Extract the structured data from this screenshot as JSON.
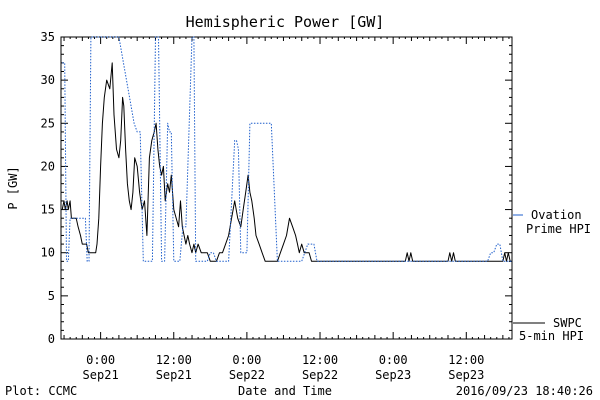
{
  "chart_data": {
    "type": "line",
    "title": "Hemispheric Power [GW]",
    "xlabel": "Date and Time",
    "ylabel": "P [GW]",
    "ylim": [
      0,
      35
    ],
    "xlim_hours": [
      -6.5,
      67.5
    ],
    "yticks": [
      0,
      5,
      10,
      15,
      20,
      25,
      30,
      35
    ],
    "xticks": [
      {
        "hour": 0,
        "time": "0:00",
        "date": "Sep21"
      },
      {
        "hour": 12,
        "time": "12:00",
        "date": "Sep21"
      },
      {
        "hour": 24,
        "time": "0:00",
        "date": "Sep22"
      },
      {
        "hour": 36,
        "time": "12:00",
        "date": "Sep22"
      },
      {
        "hour": 48,
        "time": "0:00",
        "date": "Sep23"
      },
      {
        "hour": 60,
        "time": "12:00",
        "date": "Sep23"
      }
    ],
    "series": [
      {
        "name": "SWPC 5-min HPI",
        "color": "#000000",
        "style": "solid",
        "legend_lines": [
          "SWPC",
          "5-min HPI"
        ],
        "x": [
          -6.3,
          -6.0,
          -5.8,
          -5.5,
          -5.3,
          -5.0,
          -4.8,
          -4.5,
          -4.3,
          -4.0,
          -3.7,
          -3.3,
          -3.0,
          -2.7,
          -2.3,
          -2.0,
          -1.5,
          -1.0,
          -0.8,
          -0.6,
          -0.3,
          0.0,
          0.3,
          0.6,
          1.0,
          1.5,
          1.9,
          2.2,
          2.6,
          3.0,
          3.3,
          3.6,
          3.8,
          4.1,
          4.4,
          4.7,
          5.0,
          5.3,
          5.6,
          6.0,
          6.4,
          6.8,
          7.2,
          7.6,
          8.0,
          8.4,
          8.8,
          9.1,
          9.4,
          9.7,
          10.0,
          10.3,
          10.6,
          11.0,
          11.3,
          11.6,
          12.0,
          12.4,
          12.8,
          13.1,
          13.4,
          13.7,
          14.0,
          14.3,
          14.6,
          15.0,
          15.3,
          15.6,
          16.0,
          16.5,
          17.0,
          17.5,
          18.0,
          18.5,
          19.0,
          19.5,
          20.0,
          20.5,
          21.0,
          21.5,
          22.0,
          22.5,
          23.0,
          23.4,
          23.8,
          24.2,
          24.5,
          24.8,
          25.2,
          25.5,
          26.0,
          26.5,
          27.0,
          27.5,
          28.0,
          28.5,
          29.0,
          29.5,
          30.0,
          30.5,
          31.0,
          31.5,
          32.0,
          32.3,
          32.6,
          33.0,
          33.4,
          33.8,
          34.2,
          34.6,
          35.0,
          35.5,
          36.0,
          36.5,
          37.0,
          38.0,
          42.0,
          46.0,
          48.0,
          50.0,
          50.3,
          50.6,
          50.9,
          51.2,
          52.0,
          55.0,
          56.0,
          57.0,
          57.3,
          57.6,
          57.9,
          58.2,
          59.0,
          62.0,
          64.0,
          66.0,
          66.3,
          66.6,
          66.9,
          67.2,
          67.4
        ],
        "y": [
          15,
          16,
          15,
          16,
          15,
          16,
          14,
          14,
          14,
          14,
          13,
          12,
          11,
          11,
          11,
          10,
          10,
          10,
          10,
          11,
          14,
          20,
          25,
          28,
          30,
          29,
          32,
          26,
          22,
          21,
          23,
          28,
          27,
          22,
          18,
          16,
          15,
          17,
          21,
          20,
          17,
          15,
          16,
          12,
          21,
          23,
          24,
          25,
          22,
          20,
          19,
          20,
          16,
          18,
          17,
          19,
          15,
          14,
          13,
          16,
          13,
          12,
          11,
          12,
          11,
          10,
          11,
          10,
          11,
          10,
          10,
          10,
          9,
          9,
          9,
          10,
          10,
          11,
          12,
          14,
          16,
          14,
          13,
          15,
          17,
          19,
          17,
          16,
          14,
          12,
          11,
          10,
          9,
          9,
          9,
          9,
          9,
          10,
          11,
          12,
          14,
          13,
          12,
          11,
          10,
          11,
          10,
          10,
          10,
          9,
          9,
          9,
          9,
          9,
          9,
          9,
          9,
          9,
          9,
          9,
          10,
          9,
          10,
          9,
          9,
          9,
          9,
          9,
          10,
          9,
          10,
          9,
          9,
          9,
          9,
          9,
          10,
          9,
          10,
          9,
          9
        ]
      },
      {
        "name": "Ovation Prime HPI",
        "color": "#1f5fcc",
        "style": "dotted",
        "legend_lines": [
          "Ovation",
          "Prime HPI"
        ],
        "x": [
          -6.3,
          -5.9,
          -5.6,
          -5.3,
          -5.0,
          -4.6,
          -2.5,
          -2.2,
          -1.9,
          -1.6,
          -1.2,
          1.0,
          1.5,
          2.0,
          3.0,
          5.5,
          6.0,
          6.5,
          7.0,
          8.0,
          8.5,
          9.0,
          9.5,
          10.0,
          10.5,
          11.0,
          11.3,
          11.6,
          12.0,
          12.5,
          13.0,
          13.5,
          14.0,
          15.0,
          15.3,
          15.6,
          16.0,
          16.5,
          17.0,
          17.5,
          18.0,
          18.5,
          19.0,
          19.5,
          20.0,
          21.0,
          22.0,
          22.3,
          22.6,
          23.0,
          23.5,
          24.0,
          24.5,
          25.0,
          25.3,
          26.0,
          27.0,
          28.0,
          29.0,
          30.0,
          31.0,
          32.0,
          33.0,
          34.0,
          35.0,
          35.5,
          36.0,
          36.5,
          37.0,
          38.0,
          42.0,
          46.0,
          50.0,
          54.0,
          58.0,
          62.0,
          63.5,
          64.0,
          64.5,
          65.0,
          65.5,
          66.0,
          67.0,
          67.4
        ],
        "y": [
          32,
          32,
          9,
          9,
          14,
          14,
          14,
          9,
          9,
          35,
          35,
          35,
          35,
          35,
          35,
          25,
          24,
          24,
          9,
          9,
          9,
          35,
          35,
          9,
          9,
          25,
          24,
          24,
          9,
          9,
          9,
          13,
          13,
          35,
          35,
          9,
          9,
          9,
          9,
          9,
          10,
          10,
          9,
          9,
          9,
          9,
          23,
          23,
          22,
          10,
          10,
          10,
          25,
          25,
          25,
          25,
          25,
          25,
          9,
          9,
          9,
          9,
          9,
          11,
          11,
          9,
          9,
          9,
          9,
          9,
          9,
          9,
          9,
          9,
          9,
          9,
          9,
          10,
          10,
          11,
          11,
          9,
          9,
          9
        ]
      }
    ]
  },
  "footer": {
    "left": "Plot: CCMC",
    "right": "2016/09/23 18:40:26"
  }
}
